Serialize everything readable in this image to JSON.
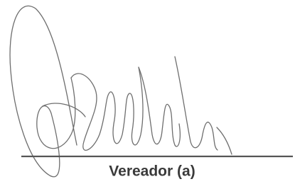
{
  "signature_block": {
    "caption": "Vereador (a)"
  }
}
